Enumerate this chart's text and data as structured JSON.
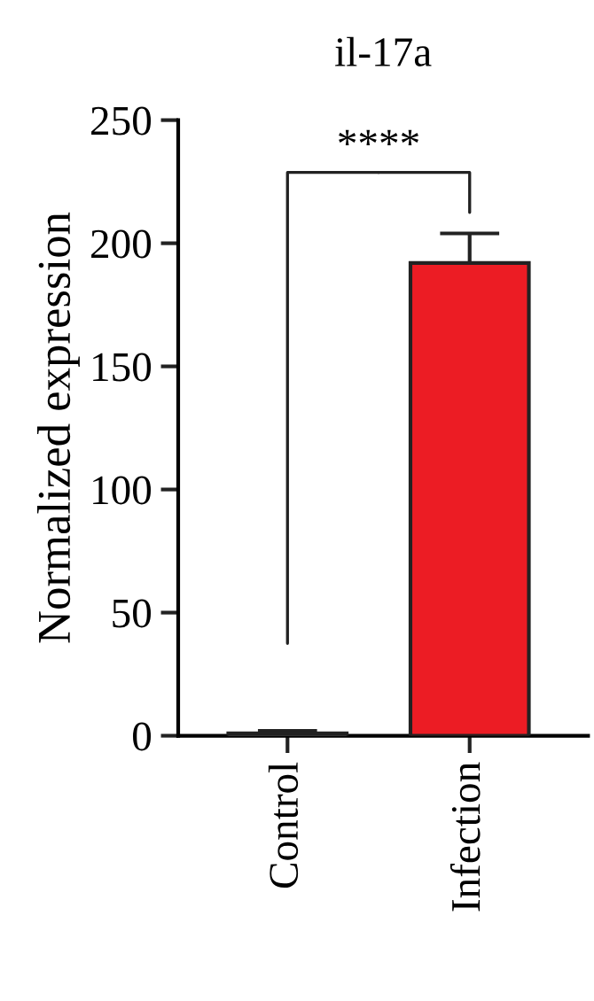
{
  "chart_data": {
    "type": "bar",
    "title": "il-17a",
    "ylabel": "Normalized expression",
    "categories": [
      "Control",
      "Infection"
    ],
    "values": [
      1,
      192
    ],
    "colors": [
      "#ffffff",
      "#ec1c24"
    ],
    "errors": [
      1,
      12
    ],
    "ylim": [
      0,
      250
    ],
    "yticks": [
      0,
      50,
      100,
      150,
      200,
      250
    ],
    "grid": false,
    "annotations": [
      "****"
    ]
  }
}
